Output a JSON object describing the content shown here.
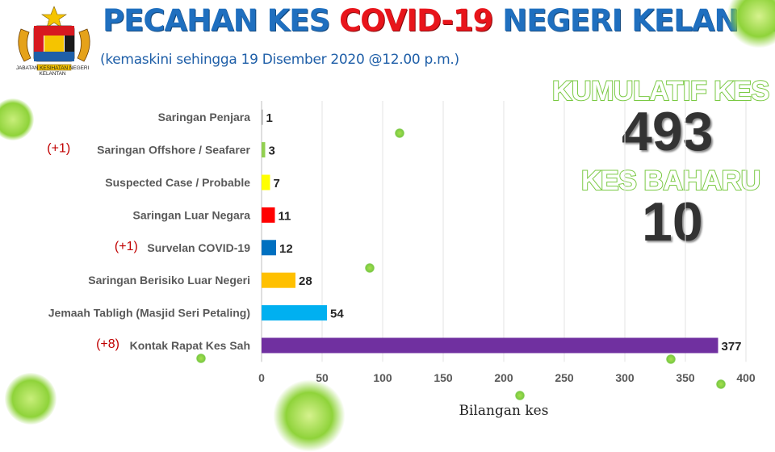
{
  "header": {
    "title_part1": "PECAHAN KES",
    "title_part2": "COVID-19",
    "title_part3": "NEGERI KELANTAN",
    "subtitle": "(kemaskini sehingga 19 Disember 2020 @12.00 p.m.)",
    "department": "JABATAN KESIHATAN NEGERI KELANTAN"
  },
  "stats": {
    "cumulative_label": "KUMULATIF KES",
    "cumulative_value": "493",
    "new_label": "KES BAHARU",
    "new_value": "10"
  },
  "colors": {
    "title_blue": "#1f6fbf",
    "title_red": "#e8151b",
    "stat_outline_green": "#7ac943",
    "virus_green": "#8fd33a"
  },
  "chart_data": {
    "type": "bar",
    "orientation": "horizontal",
    "categories": [
      "Saringan Penjara",
      "Saringan Offshore / Seafarer",
      "Suspected Case / Probable",
      "Saringan Luar Negara",
      "Survelan COVID-19",
      "Saringan Berisiko Luar Negeri",
      "Jemaah Tabligh (Masjid Seri Petaling)",
      "Kontak Rapat Kes Sah"
    ],
    "values": [
      1,
      3,
      7,
      11,
      12,
      28,
      54,
      377
    ],
    "increments": [
      "",
      "(+1)",
      "",
      "",
      "(+1)",
      "",
      "",
      "(+8)"
    ],
    "bar_colors": [
      "#a6a6a6",
      "#92d050",
      "#ffff00",
      "#ff0000",
      "#0070c0",
      "#ffc000",
      "#00b0f0",
      "#7030a0"
    ],
    "xlabel": "Bilangan kes",
    "ylabel": "",
    "xlim": [
      0,
      400
    ],
    "x_ticks": [
      0,
      50,
      100,
      150,
      200,
      250,
      300,
      350,
      400
    ],
    "grid": true,
    "legend": "none"
  }
}
